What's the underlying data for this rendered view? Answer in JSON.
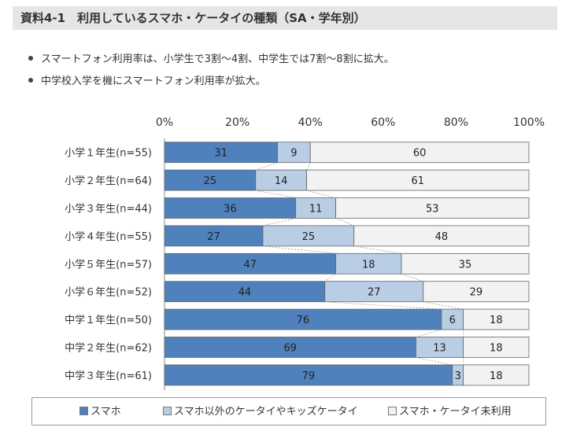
{
  "title": "資料4-1　利用しているスマホ・ケータイの種類（SA・学年別）",
  "bullets": [
    "スマートフォン利用率は、小学生で3割～4割、中学生では7割～8割に拡大。",
    "中学校入学を機にスマートフォン利用率が拡大。"
  ],
  "colors": {
    "smartphone": "#4f81bd",
    "other_phone": "#b9cde5",
    "none": "#f2f2f2"
  },
  "chart_data": {
    "type": "bar",
    "orientation": "horizontal-stacked-100",
    "categories": [
      "小学１年生(n=55)",
      "小学２年生(n=64)",
      "小学３年生(n=44)",
      "小学４年生(n=55)",
      "小学５年生(n=57)",
      "小学６年生(n=52)",
      "中学１年生(n=50)",
      "中学２年生(n=62)",
      "中学３年生(n=61)"
    ],
    "series": [
      {
        "name": "スマホ",
        "values": [
          31,
          25,
          36,
          27,
          47,
          44,
          76,
          69,
          79
        ]
      },
      {
        "name": "スマホ以外のケータイやキッズケータイ",
        "values": [
          9,
          14,
          11,
          25,
          18,
          27,
          6,
          13,
          3
        ]
      },
      {
        "name": "スマホ・ケータイ未利用",
        "values": [
          60,
          61,
          53,
          48,
          35,
          29,
          18,
          18,
          18
        ]
      }
    ],
    "xlim": [
      0,
      100
    ],
    "x_ticks": [
      "0%",
      "20%",
      "40%",
      "60%",
      "80%",
      "100%"
    ],
    "grid": false,
    "legend_position": "bottom"
  }
}
